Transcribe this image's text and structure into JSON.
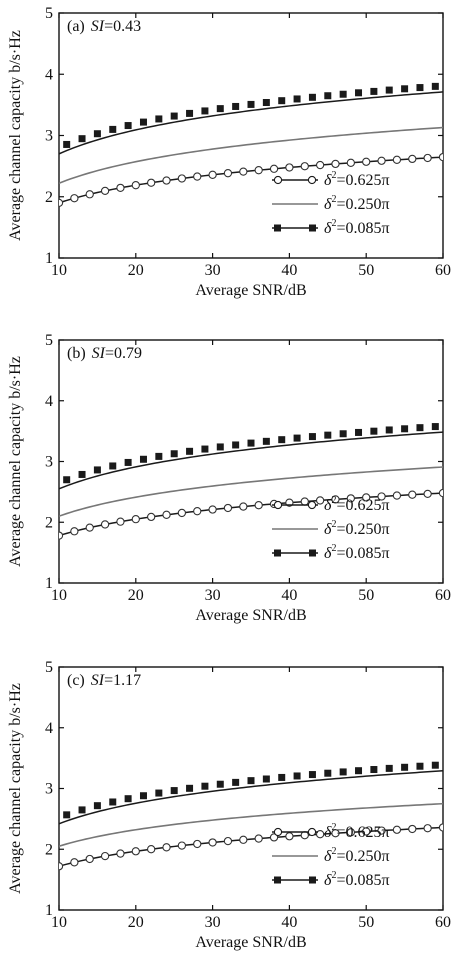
{
  "colors": {
    "axis": "#111111",
    "series_dark": "#1a1a1a",
    "series_mid": "#777777",
    "series_light": "#333333"
  },
  "chart_data": [
    {
      "type": "line",
      "panel_label": "(a)",
      "si_prefix": "SI",
      "si_value": "=0.43",
      "xlabel": "Average  SNR/dB",
      "ylabel": "Average channel capacity b/s·Hz",
      "xlim": [
        10,
        60
      ],
      "ylim": [
        1,
        5
      ],
      "x_ticks": [
        10,
        20,
        30,
        40,
        50,
        60
      ],
      "y_ticks": [
        1,
        2,
        3,
        4,
        5
      ],
      "legend_position": "bottom-right",
      "series": [
        {
          "name": "δ²=0.625π",
          "legend_prefix": "δ",
          "legend_sup": "2",
          "legend_rest": "=0.625π",
          "marker": "circle-open",
          "style": "dark",
          "a": 1.9,
          "b": 0.96,
          "x": [
            10,
            12,
            14,
            16,
            18,
            20,
            22,
            24,
            26,
            28,
            30,
            32,
            34,
            36,
            38,
            40,
            42,
            44,
            46,
            48,
            50,
            52,
            54,
            56,
            58,
            60
          ]
        },
        {
          "name": "δ²=0.250π",
          "legend_prefix": "δ",
          "legend_sup": "2",
          "legend_rest": "=0.250π",
          "marker": "none",
          "style": "mid",
          "a": 2.22,
          "b": 1.17,
          "x": [
            10,
            60
          ]
        },
        {
          "name": "δ²=0.085π",
          "legend_prefix": "δ",
          "legend_sup": "2",
          "legend_rest": "=0.085π",
          "marker": "square-filled",
          "style": "dark",
          "a": 2.7,
          "b": 1.3,
          "marker_offset": 0.1,
          "x": [
            11,
            13,
            15,
            17,
            19,
            21,
            23,
            25,
            27,
            29,
            31,
            33,
            35,
            37,
            39,
            41,
            43,
            45,
            47,
            49,
            51,
            53,
            55,
            57,
            59
          ]
        }
      ]
    },
    {
      "type": "line",
      "panel_label": "(b)",
      "si_prefix": "SI",
      "si_value": "=0.79",
      "xlabel": "Average  SNR/dB",
      "ylabel": "Average channel capacity b/s·Hz",
      "xlim": [
        10,
        60
      ],
      "ylim": [
        1,
        5
      ],
      "x_ticks": [
        10,
        20,
        30,
        40,
        50,
        60
      ],
      "y_ticks": [
        1,
        2,
        3,
        4,
        5
      ],
      "legend_position": "bottom-right",
      "series": [
        {
          "name": "δ²=0.625π",
          "legend_prefix": "δ",
          "legend_sup": "2",
          "legend_rest": "=0.625π",
          "marker": "circle-open",
          "style": "dark",
          "a": 1.78,
          "b": 0.9,
          "x": [
            10,
            12,
            14,
            16,
            18,
            20,
            22,
            24,
            26,
            28,
            30,
            32,
            34,
            36,
            38,
            40,
            42,
            44,
            46,
            48,
            50,
            52,
            54,
            56,
            58,
            60
          ]
        },
        {
          "name": "δ²=0.250π",
          "legend_prefix": "δ",
          "legend_sup": "2",
          "legend_rest": "=0.250π",
          "marker": "none",
          "style": "mid",
          "a": 2.1,
          "b": 1.04,
          "x": [
            10,
            60
          ]
        },
        {
          "name": "δ²=0.085π",
          "legend_prefix": "δ",
          "legend_sup": "2",
          "legend_rest": "=0.085π",
          "marker": "square-filled",
          "style": "dark",
          "a": 2.55,
          "b": 1.2,
          "marker_offset": 0.1,
          "x": [
            11,
            13,
            15,
            17,
            19,
            21,
            23,
            25,
            27,
            29,
            31,
            33,
            35,
            37,
            39,
            41,
            43,
            45,
            47,
            49,
            51,
            53,
            55,
            57,
            59
          ]
        }
      ]
    },
    {
      "type": "line",
      "panel_label": "(c)",
      "si_prefix": "SI",
      "si_value": "=1.17",
      "xlabel": "Average  SNR/dB",
      "ylabel": "Average channel capacity b/s·Hz",
      "xlim": [
        10,
        60
      ],
      "ylim": [
        1,
        5
      ],
      "x_ticks": [
        10,
        20,
        30,
        40,
        50,
        60
      ],
      "y_ticks": [
        1,
        2,
        3,
        4,
        5
      ],
      "legend_position": "bottom-right",
      "series": [
        {
          "name": "δ²=0.625π",
          "legend_prefix": "δ",
          "legend_sup": "2",
          "legend_rest": "=0.625π",
          "marker": "circle-open",
          "style": "dark",
          "a": 1.72,
          "b": 0.82,
          "x": [
            10,
            12,
            14,
            16,
            18,
            20,
            22,
            24,
            26,
            28,
            30,
            32,
            34,
            36,
            38,
            40,
            42,
            44,
            46,
            48,
            50,
            52,
            54,
            56,
            58,
            60
          ]
        },
        {
          "name": "δ²=0.250π",
          "legend_prefix": "δ",
          "legend_sup": "2",
          "legend_rest": "=0.250π",
          "marker": "none",
          "style": "mid",
          "a": 2.05,
          "b": 0.9,
          "x": [
            10,
            60
          ]
        },
        {
          "name": "δ²=0.085π",
          "legend_prefix": "δ",
          "legend_sup": "2",
          "legend_rest": "=0.085π",
          "marker": "square-filled",
          "style": "dark",
          "a": 2.42,
          "b": 1.12,
          "marker_offset": 0.1,
          "x": [
            11,
            13,
            15,
            17,
            19,
            21,
            23,
            25,
            27,
            29,
            31,
            33,
            35,
            37,
            39,
            41,
            43,
            45,
            47,
            49,
            51,
            53,
            55,
            57,
            59
          ]
        }
      ]
    }
  ]
}
